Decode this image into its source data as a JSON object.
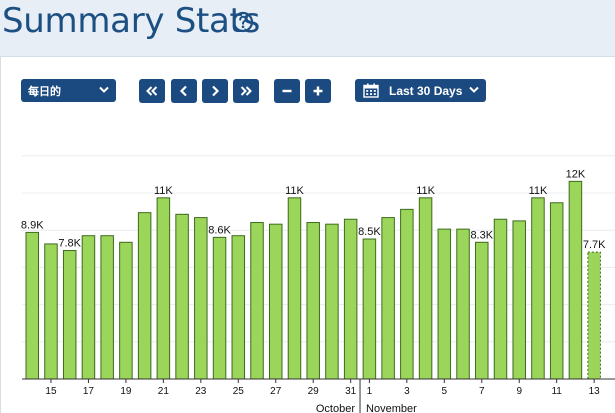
{
  "header": {
    "title": "Summary Stats"
  },
  "icons": {
    "help": "help-circle-icon",
    "calendar": "calendar-icon",
    "chevron": "chevron-down-icon"
  },
  "controls": {
    "interval_select": "每日的",
    "range_select": "Last 30 Days"
  },
  "colors": {
    "bar_fill": "#9bd55a",
    "bar_stroke": "#3d6b1e",
    "accent": "#1b4a80",
    "title": "#1c4f82"
  },
  "chart_data": {
    "type": "bar",
    "title": "",
    "xlabel": "",
    "ylabel": "",
    "ylim": [
      0,
      13600
    ],
    "categories": [
      "14",
      "15",
      "16",
      "17",
      "18",
      "19",
      "20",
      "21",
      "22",
      "23",
      "24",
      "25",
      "26",
      "27",
      "28",
      "29",
      "30",
      "31",
      "1",
      "2",
      "3",
      "4",
      "5",
      "6",
      "7",
      "8",
      "9",
      "10",
      "11",
      "12",
      "13"
    ],
    "values": [
      8900,
      8200,
      7800,
      8700,
      8700,
      8300,
      10100,
      11000,
      10000,
      9800,
      8600,
      8700,
      9500,
      9400,
      11000,
      9500,
      9400,
      9700,
      8500,
      9800,
      10300,
      11000,
      9100,
      9100,
      8300,
      9700,
      9600,
      11000,
      10700,
      12000,
      7700
    ],
    "partial_last": true,
    "data_labels": [
      {
        "index": 0,
        "text": "8.9K"
      },
      {
        "index": 2,
        "text": "7.8K"
      },
      {
        "index": 7,
        "text": "11K"
      },
      {
        "index": 10,
        "text": "8.6K"
      },
      {
        "index": 14,
        "text": "11K"
      },
      {
        "index": 18,
        "text": "8.5K"
      },
      {
        "index": 21,
        "text": "11K"
      },
      {
        "index": 24,
        "text": "8.3K"
      },
      {
        "index": 27,
        "text": "11K"
      },
      {
        "index": 29,
        "text": "12K"
      },
      {
        "index": 30,
        "text": "7.7K"
      }
    ],
    "tick_labels": [
      {
        "index": 1,
        "text": "15"
      },
      {
        "index": 3,
        "text": "17"
      },
      {
        "index": 5,
        "text": "19"
      },
      {
        "index": 7,
        "text": "21"
      },
      {
        "index": 9,
        "text": "23"
      },
      {
        "index": 11,
        "text": "25"
      },
      {
        "index": 13,
        "text": "27"
      },
      {
        "index": 15,
        "text": "29"
      },
      {
        "index": 17,
        "text": "31"
      },
      {
        "index": 18,
        "text": "1"
      },
      {
        "index": 20,
        "text": "3"
      },
      {
        "index": 22,
        "text": "5"
      },
      {
        "index": 24,
        "text": "7"
      },
      {
        "index": 26,
        "text": "9"
      },
      {
        "index": 28,
        "text": "11"
      },
      {
        "index": 30,
        "text": "13"
      }
    ],
    "months": [
      {
        "name": "October",
        "side": "left"
      },
      {
        "name": "November",
        "side": "right"
      }
    ],
    "month_boundary_index": 18,
    "grid": true,
    "legend": "none"
  }
}
